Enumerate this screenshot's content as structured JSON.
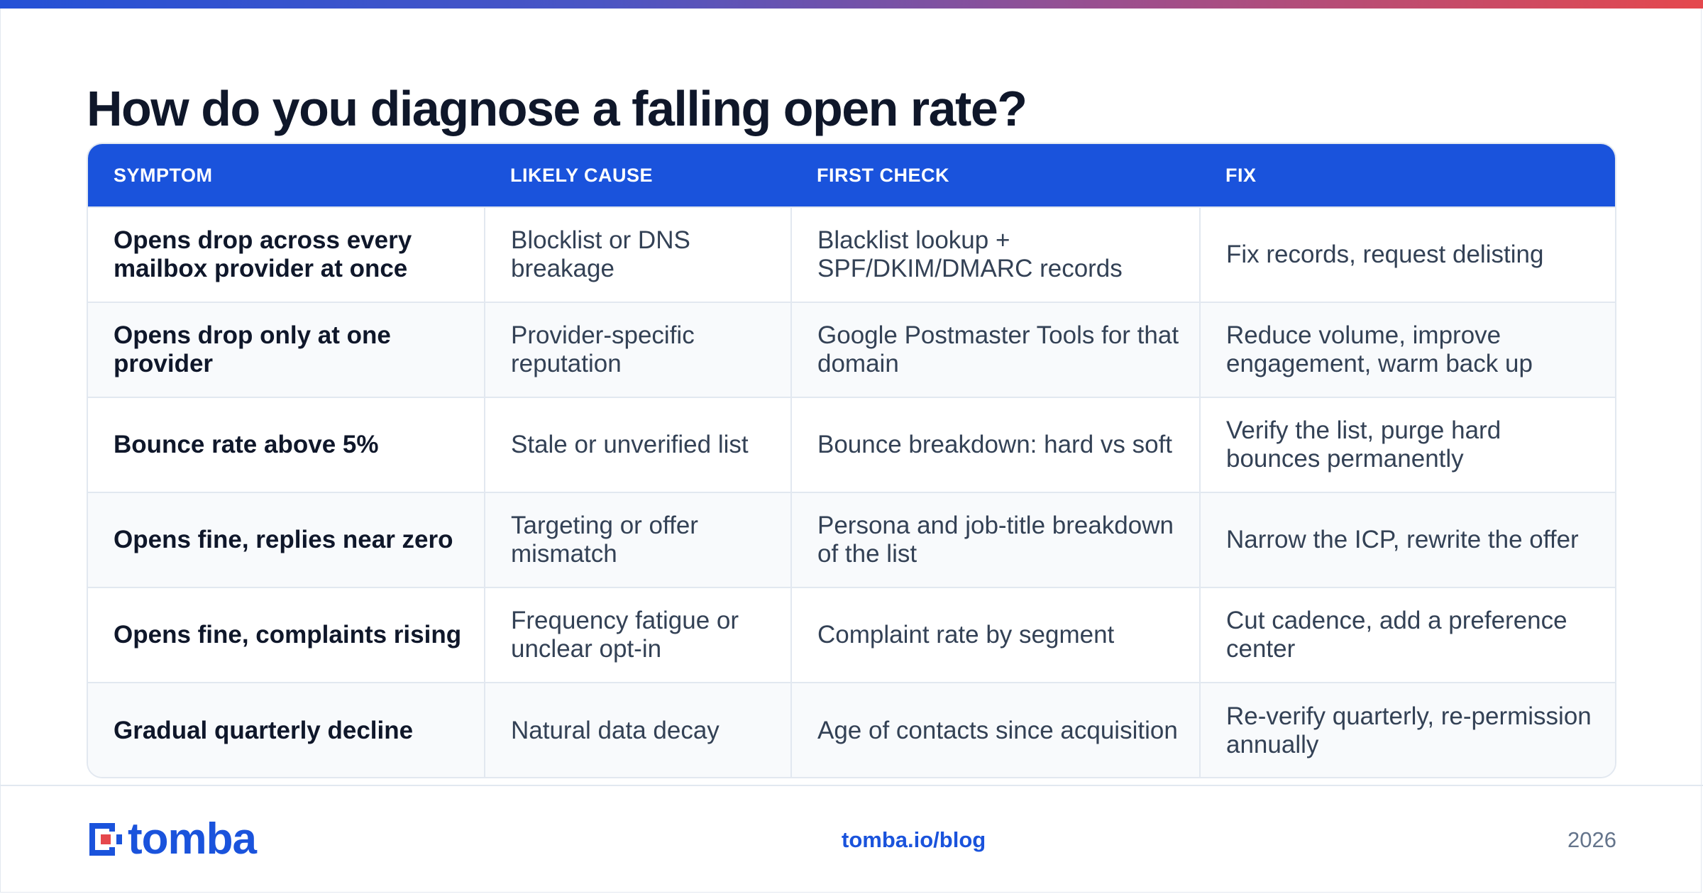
{
  "title": "How do you diagnose a falling open rate?",
  "table": {
    "headers": [
      "SYMPTOM",
      "LIKELY CAUSE",
      "FIRST CHECK",
      "FIX"
    ],
    "rows": [
      [
        "Opens drop across every mailbox provider at once",
        "Blocklist or DNS breakage",
        "Blacklist lookup + SPF/DKIM/DMARC records",
        "Fix records, request delisting"
      ],
      [
        "Opens drop only at one provider",
        "Provider-specific reputation",
        "Google Postmaster Tools for that domain",
        "Reduce volume, improve engagement, warm back up"
      ],
      [
        "Bounce rate above 5%",
        "Stale or unverified list",
        "Bounce breakdown: hard vs soft",
        "Verify the list, purge hard bounces permanently"
      ],
      [
        "Opens fine, replies near zero",
        "Targeting or offer mismatch",
        "Persona and job-title breakdown of the list",
        "Narrow the ICP, rewrite the offer"
      ],
      [
        "Opens fine, complaints rising",
        "Frequency fatigue or unclear opt-in",
        "Complaint rate by segment",
        "Cut cadence, add a preference center"
      ],
      [
        "Gradual quarterly decline",
        "Natural data decay",
        "Age of contacts since acquisition",
        "Re-verify quarterly, re-permission annually"
      ]
    ]
  },
  "footer": {
    "brand": "tomba",
    "link": "tomba.io/blog",
    "year": "2026"
  },
  "colors": {
    "accent": "#1a53dc",
    "gradient_end": "#e5484d"
  }
}
